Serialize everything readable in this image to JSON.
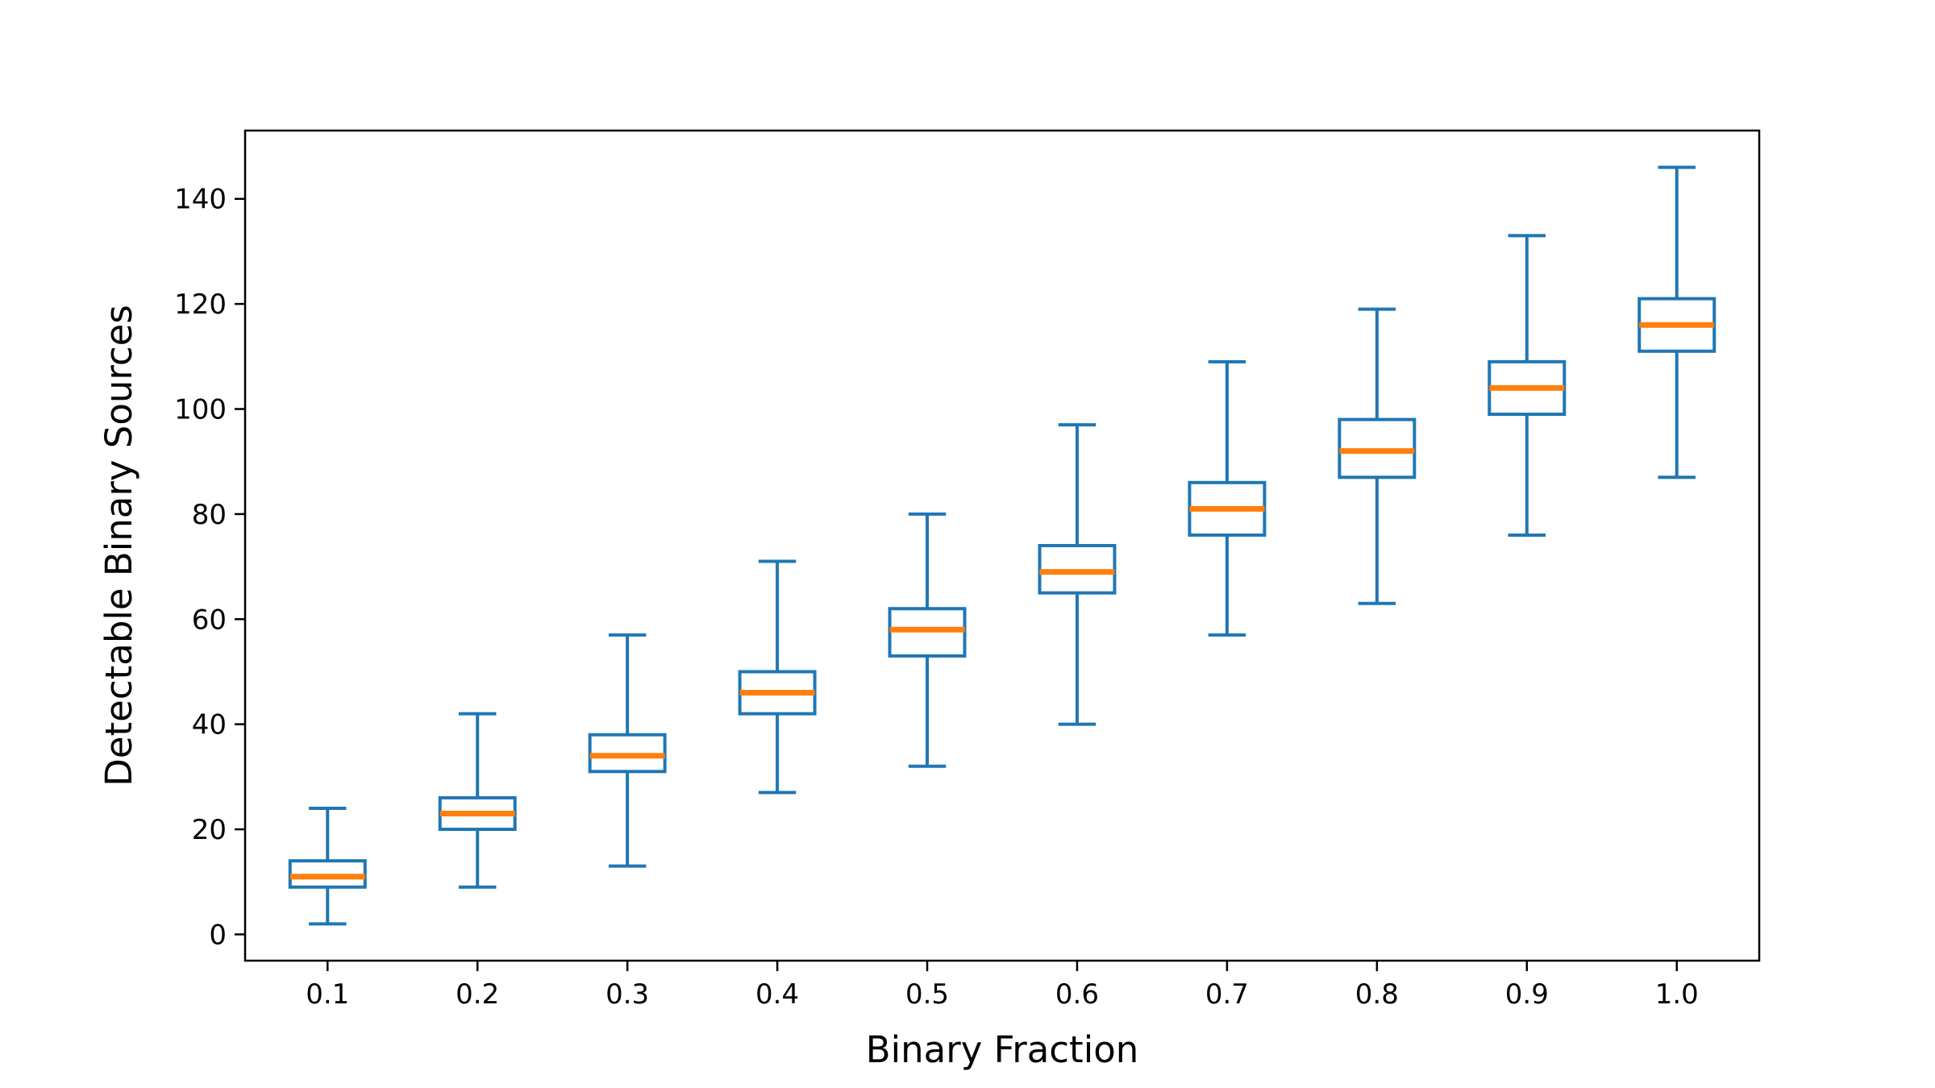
{
  "chart_data": {
    "type": "boxplot",
    "title": "",
    "xlabel": "Binary Fraction",
    "ylabel": "Detectable Binary Sources",
    "ylim": [
      -5,
      153
    ],
    "grid": false,
    "legend": "none",
    "categories": [
      "0.1",
      "0.2",
      "0.3",
      "0.4",
      "0.5",
      "0.6",
      "0.7",
      "0.8",
      "0.9",
      "1.0"
    ],
    "yticks": [
      0,
      20,
      40,
      60,
      80,
      100,
      120,
      140
    ],
    "ytick_labels": [
      "0",
      "20",
      "40",
      "60",
      "80",
      "100",
      "120",
      "140"
    ],
    "boxes": [
      {
        "whisker_low": 2,
        "q1": 9,
        "median": 11,
        "q3": 14,
        "whisker_high": 24
      },
      {
        "whisker_low": 9,
        "q1": 20,
        "median": 23,
        "q3": 26,
        "whisker_high": 42
      },
      {
        "whisker_low": 13,
        "q1": 31,
        "median": 34,
        "q3": 38,
        "whisker_high": 57
      },
      {
        "whisker_low": 27,
        "q1": 42,
        "median": 46,
        "q3": 50,
        "whisker_high": 71
      },
      {
        "whisker_low": 32,
        "q1": 53,
        "median": 58,
        "q3": 62,
        "whisker_high": 80
      },
      {
        "whisker_low": 40,
        "q1": 65,
        "median": 69,
        "q3": 74,
        "whisker_high": 97
      },
      {
        "whisker_low": 57,
        "q1": 76,
        "median": 81,
        "q3": 86,
        "whisker_high": 109
      },
      {
        "whisker_low": 63,
        "q1": 87,
        "median": 92,
        "q3": 98,
        "whisker_high": 119
      },
      {
        "whisker_low": 76,
        "q1": 99,
        "median": 104,
        "q3": 109,
        "whisker_high": 133
      },
      {
        "whisker_low": 87,
        "q1": 111,
        "median": 116,
        "q3": 121,
        "whisker_high": 146
      }
    ],
    "colors": {
      "box": "#1f77b4",
      "median": "#ff7f0e",
      "axes": "#000000"
    }
  }
}
